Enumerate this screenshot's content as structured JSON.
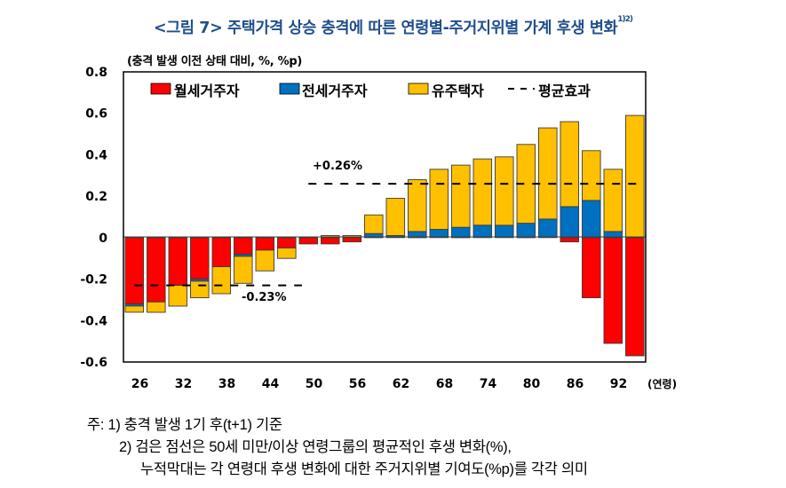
{
  "title": {
    "text": "<그림 7> 주택가격 상승 충격에 따른 연령별-주거지위별 가계 후생 변화",
    "superscript": "1)2)"
  },
  "unit_label": "(충격 발생 이전 상태 대비, %, %p)",
  "colors": {
    "monthly_rent": "#ff0000",
    "jeonse": "#0070c0",
    "owner": "#ffc000",
    "average": "#000000",
    "title": "#1f4e8c"
  },
  "chart_data": {
    "type": "bar",
    "stacked": true,
    "title": "<그림 7> 주택가격 상승 충격에 따른 연령별-주거지위별 가계 후생 변화",
    "xlabel": "(연령)",
    "ylabel": "(충격 발생 이전 상태 대비, %, %p)",
    "ylim": [
      -0.6,
      0.8
    ],
    "yticks": [
      "0.8",
      "0.6",
      "0.4",
      "0.2",
      "0",
      "-0.2",
      "-0.4",
      "-0.6"
    ],
    "ytick_values": [
      0.8,
      0.6,
      0.4,
      0.2,
      0,
      -0.2,
      -0.4,
      -0.6
    ],
    "x_tick_labels": [
      "26",
      "32",
      "38",
      "44",
      "50",
      "56",
      "62",
      "68",
      "74",
      "80",
      "86",
      "92"
    ],
    "x_unit_label": "(연령)",
    "categories": [
      "24",
      "26",
      "29",
      "32",
      "35",
      "38",
      "41",
      "44",
      "47",
      "50",
      "53",
      "56",
      "59",
      "62",
      "65",
      "68",
      "71",
      "74",
      "77",
      "80",
      "83",
      "86",
      "89",
      "92"
    ],
    "categories_note": "bars are age groups spaced ~3 years; ticks labelled every 6 years",
    "series": [
      {
        "name": "월세거주자",
        "key": "monthly_rent",
        "values": [
          -0.32,
          -0.31,
          -0.23,
          -0.2,
          -0.14,
          -0.08,
          -0.06,
          -0.05,
          -0.03,
          -0.03,
          -0.02,
          0.0,
          0.0,
          0.0,
          0.0,
          0.0,
          0.0,
          0.0,
          0.0,
          0.0,
          -0.02,
          -0.29,
          -0.51,
          -0.57
        ]
      },
      {
        "name": "전세거주자",
        "key": "jeonse",
        "values": [
          -0.01,
          0.0,
          0.0,
          -0.01,
          0.0,
          -0.01,
          0.0,
          0.0,
          0.0,
          0.0,
          0.0,
          0.02,
          0.01,
          0.03,
          0.04,
          0.05,
          0.06,
          0.06,
          0.07,
          0.09,
          0.15,
          0.18,
          0.03,
          0.0
        ]
      },
      {
        "name": "유주택자",
        "key": "owner",
        "values": [
          -0.03,
          -0.05,
          -0.1,
          -0.08,
          -0.13,
          -0.13,
          -0.1,
          -0.05,
          0.0,
          0.01,
          0.01,
          0.09,
          0.18,
          0.25,
          0.29,
          0.3,
          0.32,
          0.33,
          0.38,
          0.44,
          0.41,
          0.24,
          0.3,
          0.59
        ]
      }
    ],
    "average_lines": [
      {
        "label": "-0.23%",
        "value": -0.23,
        "range": "under 50"
      },
      {
        "label": "+0.26%",
        "value": 0.26,
        "range": "50 and over"
      }
    ],
    "legend": {
      "position": "top",
      "entries": [
        "월세거주자",
        "전세거주자",
        "유주택자",
        "평균효과"
      ]
    },
    "grid": false
  },
  "notes": {
    "line1": "주: 1) 충격 발생 1기 후(t+1) 기준",
    "line2": "2) 검은 점선은 50세 미만/이상 연령그룹의 평균적인 후생 변화(%),",
    "line3": "누적막대는 각 연령대 후생 변화에 대한 주거지위별 기여도(%p)를 각각 의미"
  }
}
